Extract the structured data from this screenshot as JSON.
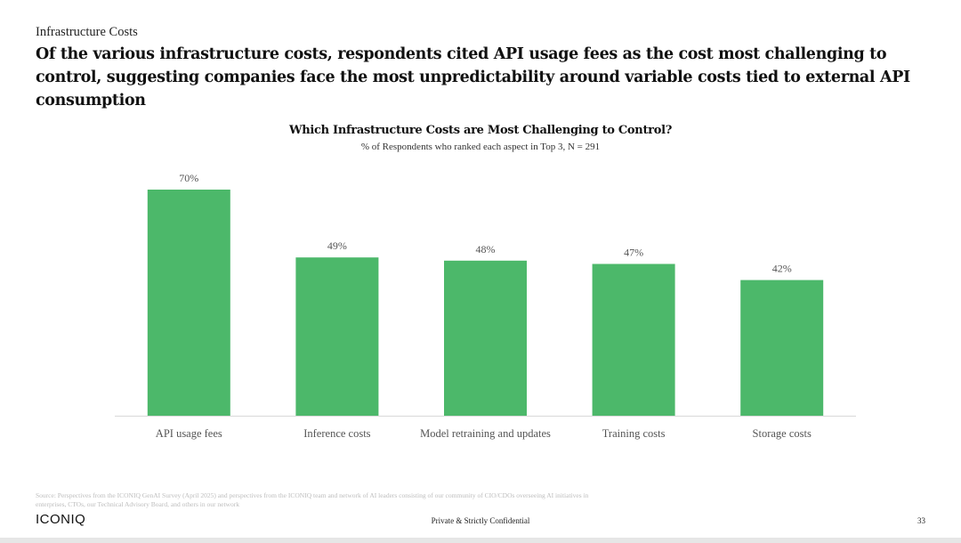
{
  "section_label": "Infrastructure Costs",
  "headline": "Of the various infrastructure costs, respondents cited API usage fees as the cost most challenging to control, suggesting companies face the most unpredictability around variable costs tied to external API consumption",
  "chart_data": {
    "type": "bar",
    "title": "Which Infrastructure Costs are Most Challenging to Control?",
    "subtitle": "% of Respondents who ranked each aspect in Top 3, N = 291",
    "categories": [
      "API usage fees",
      "Inference costs",
      "Model retraining and updates",
      "Training costs",
      "Storage costs"
    ],
    "values": [
      70,
      49,
      48,
      47,
      42
    ],
    "value_labels": [
      "70%",
      "49%",
      "48%",
      "47%",
      "42%"
    ],
    "ylim": [
      0,
      70
    ],
    "grid": false,
    "bar_color": "#4cb86a"
  },
  "footer": {
    "source": "Source: Perspectives from the ICONIQ GenAI Survey (April 2025) and perspectives from the ICONIQ team and network of AI leaders consisting of our community of CIO/CDOs overseeing AI initiatives in enterprises, CTOs, our Technical Advisory Board, and others in our network",
    "logo": "ICONIQ",
    "confidential": "Private & Strictly Confidential",
    "page_number": "33"
  }
}
